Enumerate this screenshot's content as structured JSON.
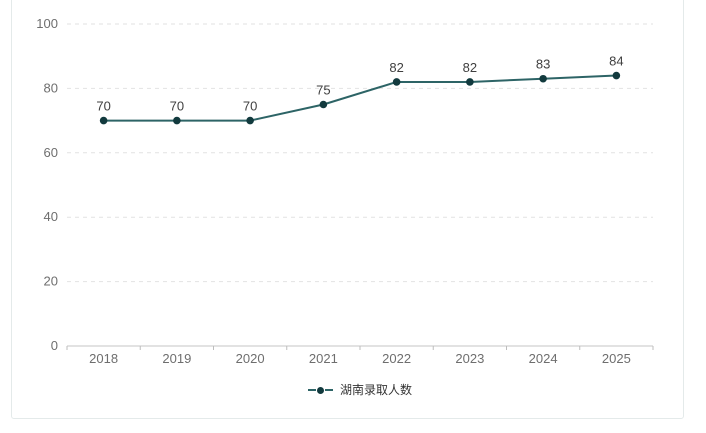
{
  "card": {
    "background": "#ffffff",
    "border_color": "#e4eaea"
  },
  "chart_data": {
    "type": "line",
    "title": "",
    "xlabel": "",
    "ylabel": "",
    "categories": [
      "2018",
      "2019",
      "2020",
      "2021",
      "2022",
      "2023",
      "2024",
      "2025"
    ],
    "series": [
      {
        "name": "湖南录取人数",
        "values": [
          70,
          70,
          70,
          75,
          82,
          82,
          83,
          84
        ]
      }
    ],
    "ylim": [
      0,
      100
    ],
    "yticks": [
      0,
      20,
      40,
      60,
      80,
      100
    ],
    "grid": "horizontal-dashed",
    "data_labels_visible": true,
    "legend_position": "bottom-center",
    "colors": {
      "line": "#2d6466",
      "marker": "#123a3e",
      "data_label": "#3f3f3f",
      "axis_label": "#6e6e6e",
      "gridline": "#e2e2e2",
      "axis_line": "#c6c6c6",
      "tick": "#bdbdbd"
    }
  }
}
